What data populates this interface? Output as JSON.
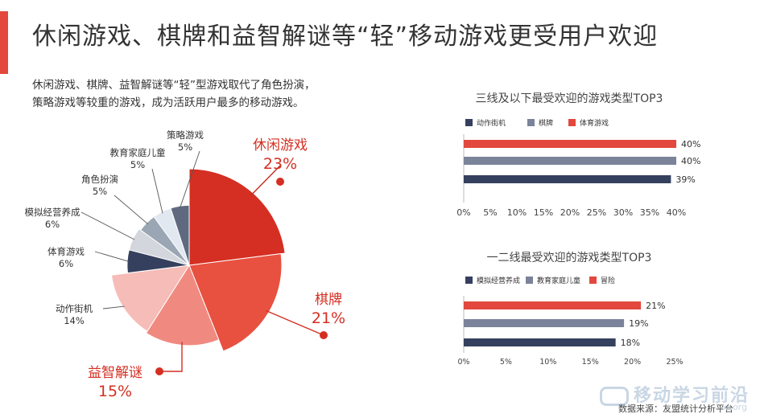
{
  "header": {
    "title": "休闲游戏、棋牌和益智解谜等“轻”移动游戏更受用户欢迎",
    "accent_color": "#e2483d"
  },
  "intro": {
    "line1": "休闲游戏、棋牌、益智解谜等“轻”型游戏取代了角色扮演，",
    "line2": "策略游戏等较重的游戏，成为活跃用户最多的移动游戏。"
  },
  "footer": {
    "source": "数据来源：友盟统计分析平台",
    "watermark": "移动学习前沿",
    "watermark_url": "xi.org"
  },
  "chart_data": [
    {
      "type": "pie",
      "slices": [
        {
          "label": "休闲游戏",
          "value": 23,
          "value_label": "23%",
          "color": "#d42f22"
        },
        {
          "label": "棋牌",
          "value": 21,
          "value_label": "21%",
          "color": "#e8503f"
        },
        {
          "label": "益智解谜",
          "value": 15,
          "value_label": "15%",
          "color": "#f08a80"
        },
        {
          "label": "动作街机",
          "value": 14,
          "value_label": "14%",
          "color": "#f6bcb7"
        },
        {
          "label": "体育游戏",
          "value": 6,
          "value_label": "6%",
          "color": "#35405e"
        },
        {
          "label": "模拟经营养成",
          "value": 6,
          "value_label": "6%",
          "color": "#d3d6dc"
        },
        {
          "label": "角色扮演",
          "value": 5,
          "value_label": "5%",
          "color": "#9aa6b3"
        },
        {
          "label": "教育家庭儿童",
          "value": 5,
          "value_label": "5%",
          "color": "#e1e8f0"
        },
        {
          "label": "策略游戏",
          "value": 5,
          "value_label": "5%",
          "color": "#5f6a80"
        }
      ]
    },
    {
      "type": "bar",
      "orientation": "horizontal",
      "title": "三线及以下最受欢迎的游戏类型TOP3",
      "series": [
        {
          "name": "动作街机",
          "value": 39,
          "value_label": "39%",
          "color": "#35405e"
        },
        {
          "name": "棋牌",
          "value": 40,
          "value_label": "40%",
          "color": "#7a8399"
        },
        {
          "name": "体育游戏",
          "value": 40,
          "value_label": "40%",
          "color": "#e2483d"
        }
      ],
      "xlim": [
        0,
        40
      ],
      "x_ticks": [
        "0%",
        "5%",
        "10%",
        "15%",
        "20%",
        "25%",
        "30%",
        "35%",
        "40%"
      ],
      "legend_position": "top-left"
    },
    {
      "type": "bar",
      "orientation": "horizontal",
      "title": "一二线最受欢迎的游戏类型TOP3",
      "series": [
        {
          "name": "模拟经营养成",
          "value": 18,
          "value_label": "18%",
          "color": "#35405e"
        },
        {
          "name": "教育家庭儿童",
          "value": 19,
          "value_label": "19%",
          "color": "#7a8399"
        },
        {
          "name": "冒险",
          "value": 21,
          "value_label": "21%",
          "color": "#e2483d"
        }
      ],
      "xlim": [
        0,
        25
      ],
      "x_ticks": [
        "0%",
        "5%",
        "10%",
        "15%",
        "20%",
        "25%"
      ],
      "legend_position": "top-left"
    }
  ]
}
